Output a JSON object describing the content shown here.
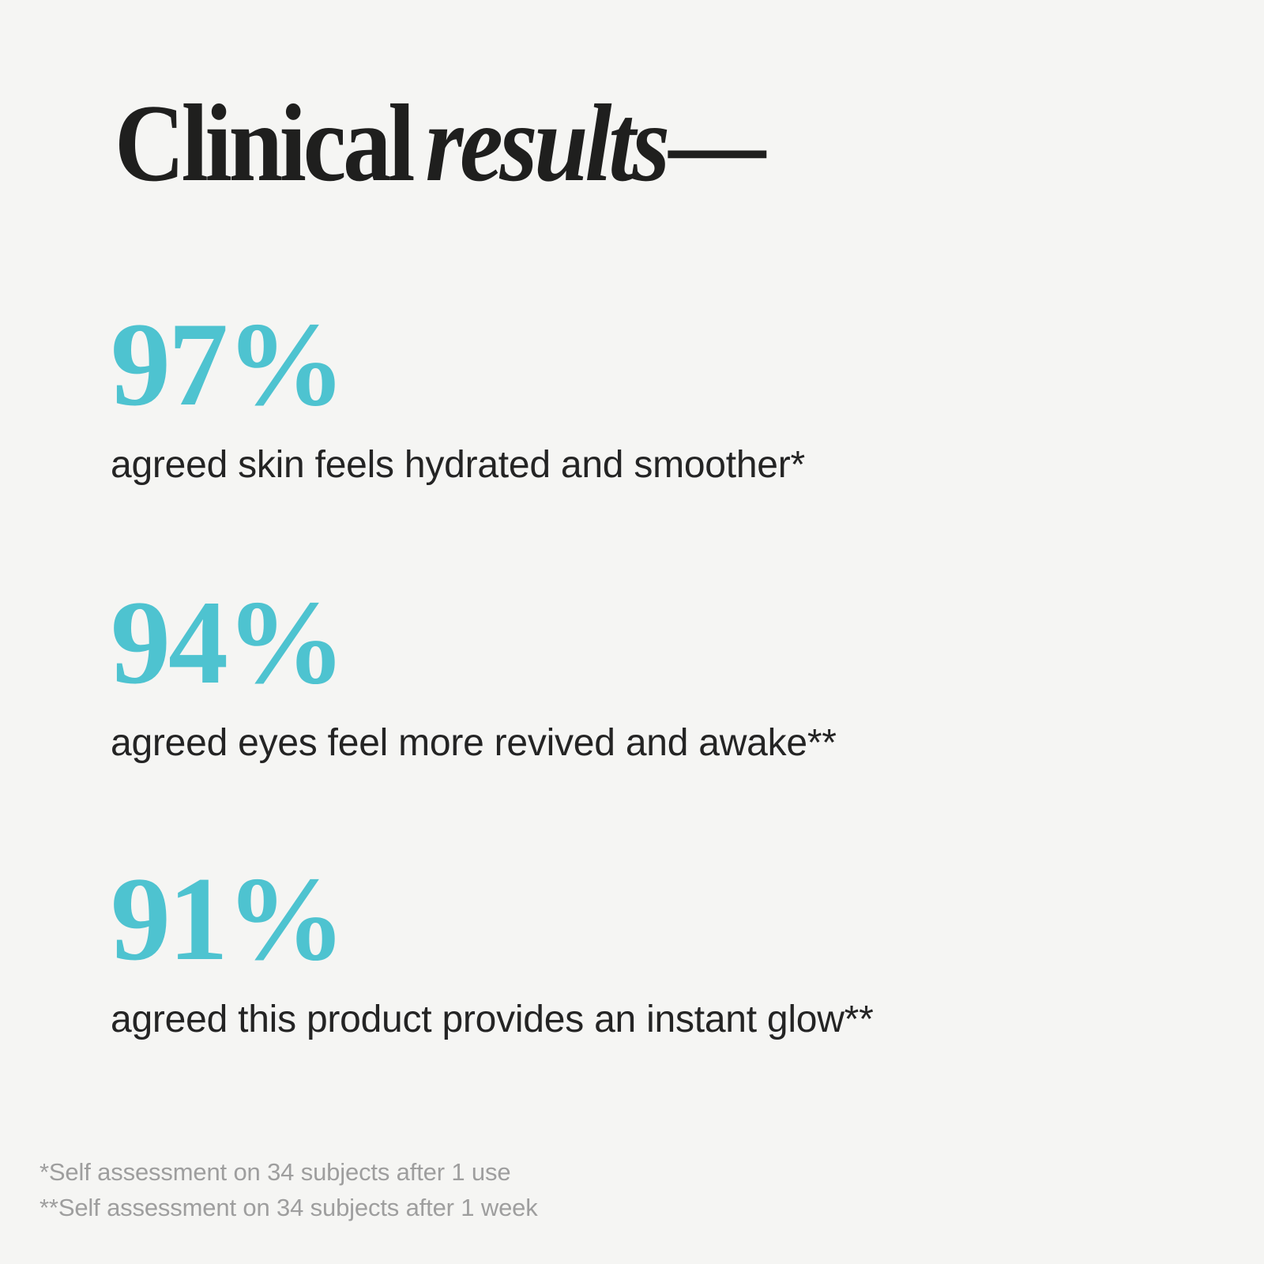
{
  "theme": {
    "background": "#f5f5f3",
    "heading_color": "#1f1f1e",
    "accent_color": "#4ec3d0",
    "body_color": "#242424",
    "footnote_color": "#9e9e9e"
  },
  "title": {
    "regular": "Clinical",
    "italic": "results",
    "dash": "—"
  },
  "stats": [
    {
      "value": "97%",
      "caption": "agreed skin feels hydrated and smoother*"
    },
    {
      "value": "94%",
      "caption": "agreed eyes feel more revived and awake**"
    },
    {
      "value": "91%",
      "caption": "agreed this product provides an instant glow**"
    }
  ],
  "footnotes": [
    "*Self assessment on 34 subjects after 1 use",
    "**Self assessment on 34 subjects after 1 week"
  ]
}
